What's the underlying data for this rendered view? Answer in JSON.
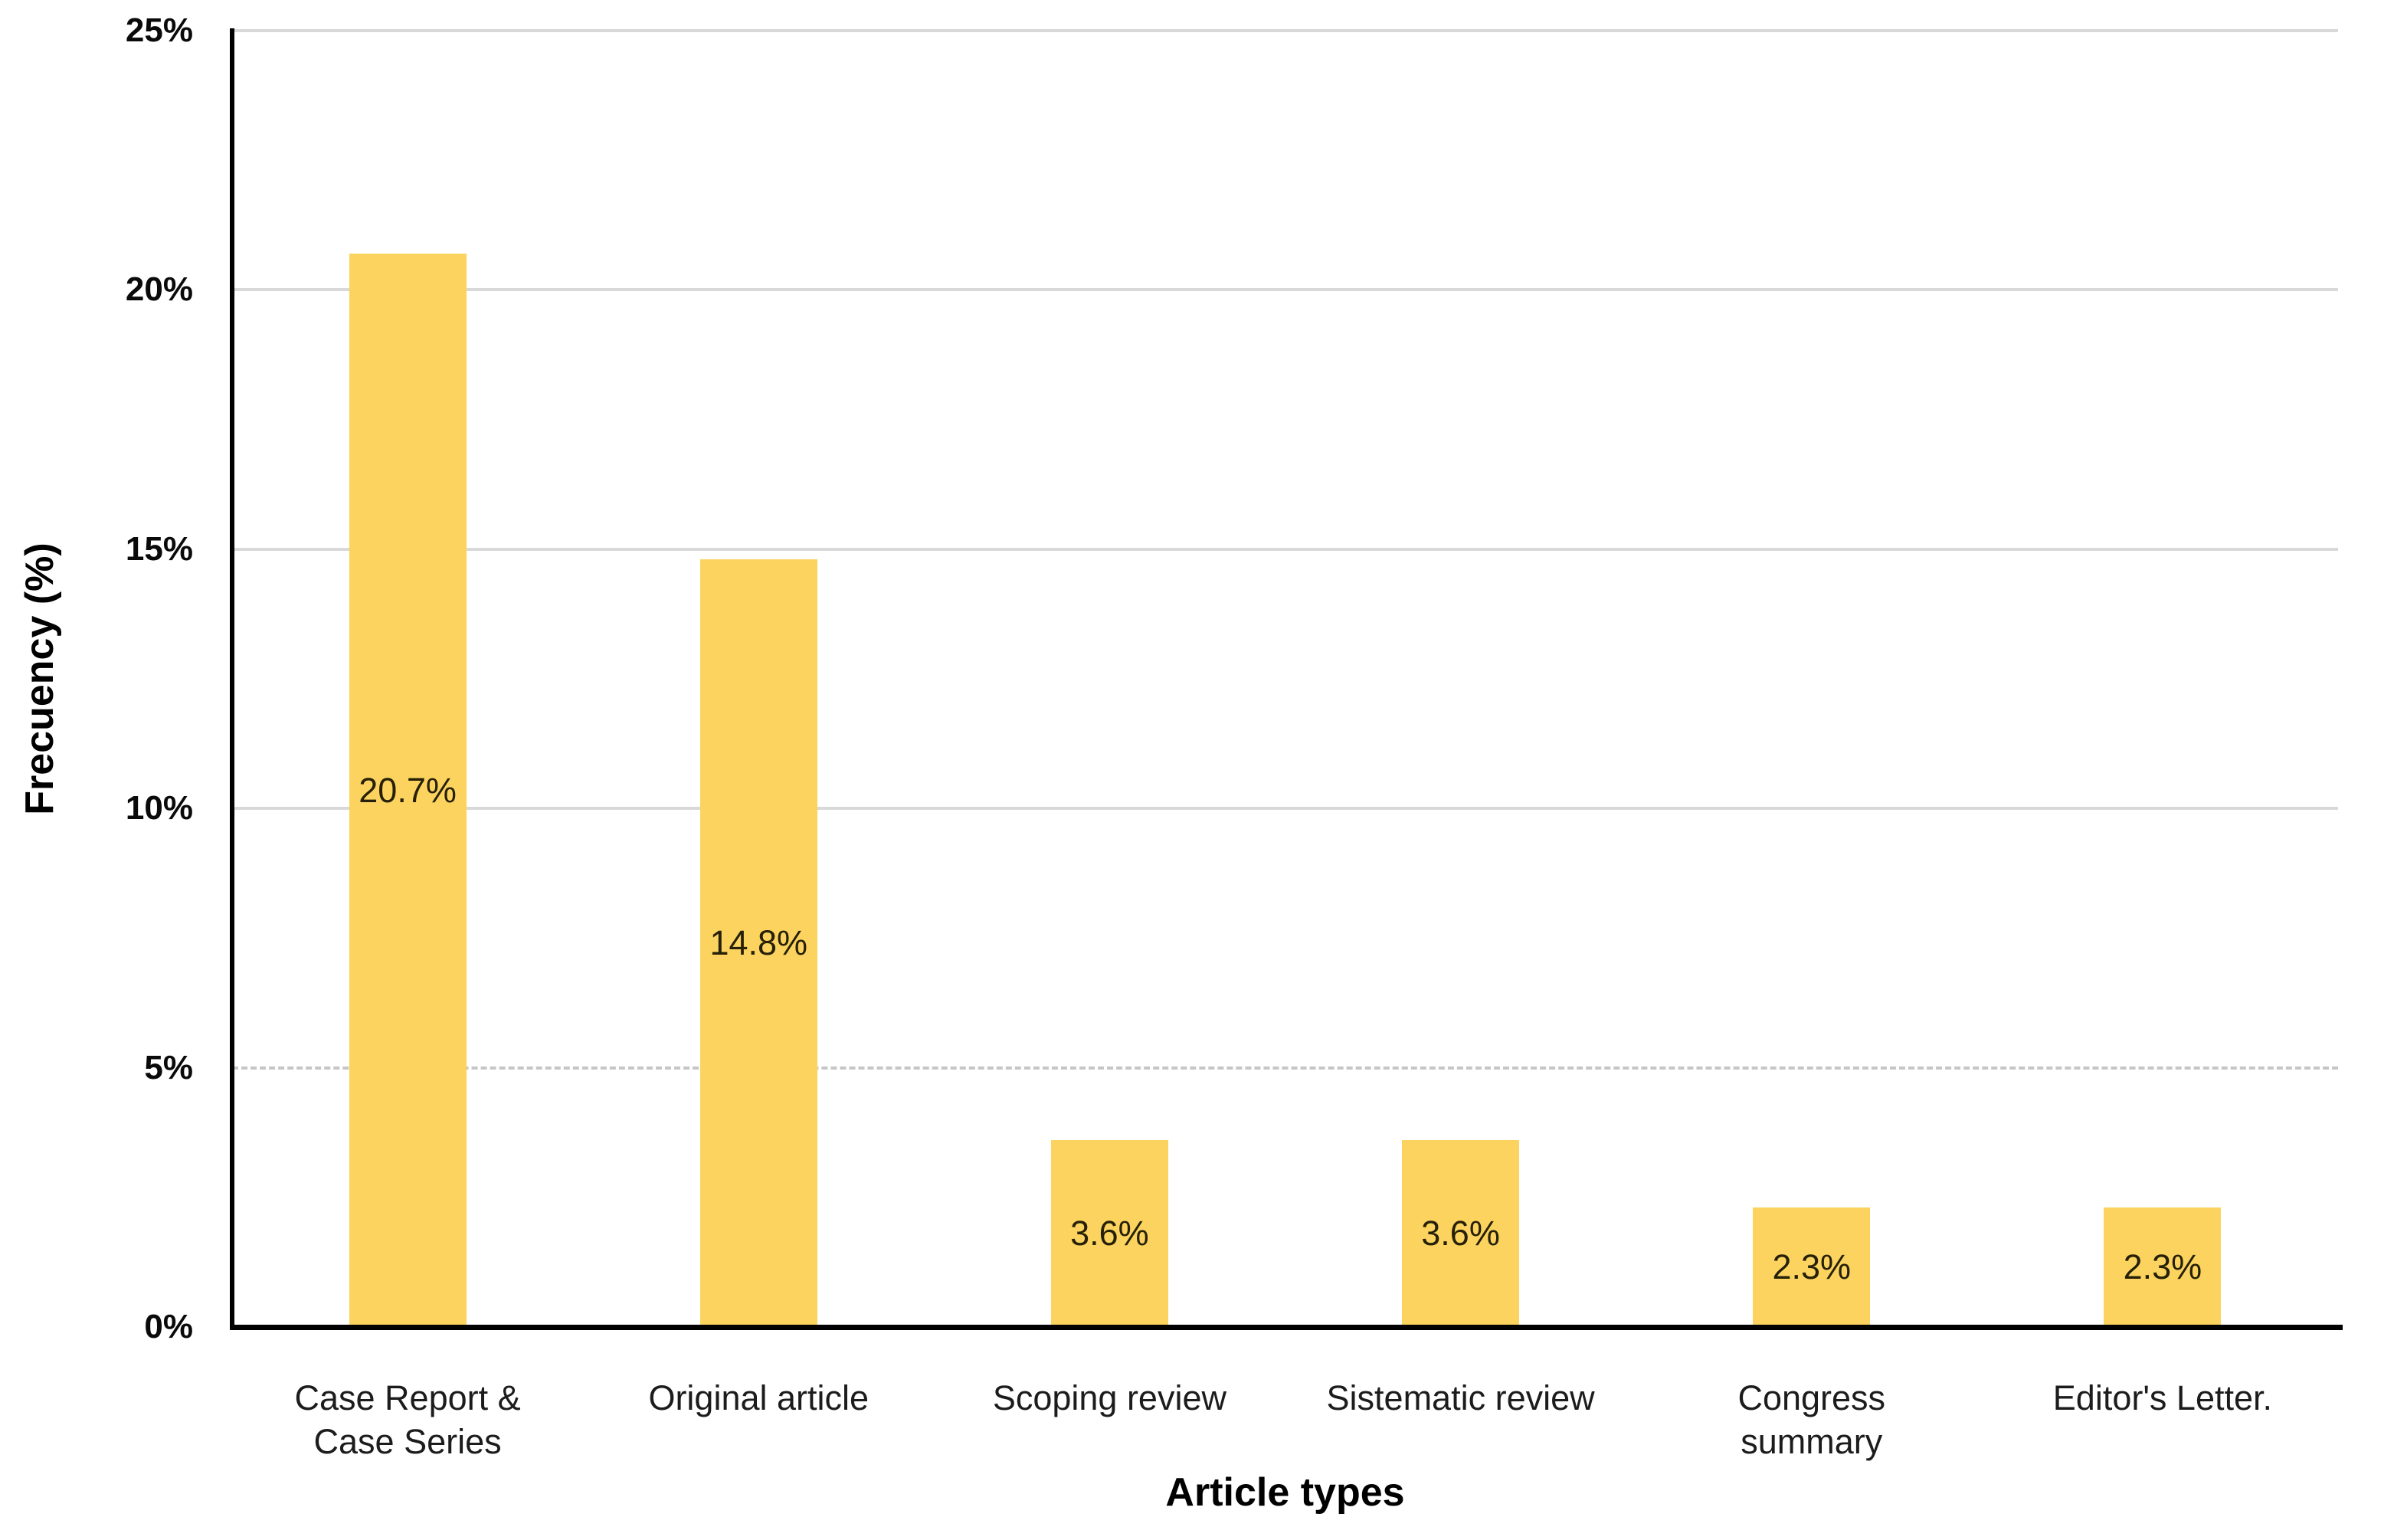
{
  "chart_data": {
    "type": "bar",
    "title": "",
    "xlabel": "Article types",
    "ylabel": "Frecuency (%)",
    "categories": [
      "Case Report &\nCase Series",
      "Original article",
      "Scoping review",
      "Sistematic review",
      "Congress\nsummary",
      "Editor's Letter."
    ],
    "values": [
      20.7,
      14.8,
      3.6,
      3.6,
      2.3,
      2.3
    ],
    "value_labels": [
      "20.7%",
      "14.8%",
      "3.6%",
      "3.6%",
      "2.3%",
      "2.3%"
    ],
    "yticks": {
      "values": [
        25,
        20,
        15,
        10,
        5,
        0
      ],
      "labels": [
        "25%",
        "20%",
        "15%",
        "10%",
        "5%",
        "0%"
      ]
    },
    "ylim": [
      0,
      25
    ],
    "grid": "horizontal",
    "legend": "none"
  },
  "styles": {
    "bar_color": "#FBD35E",
    "grid_color": "#D9D9D9",
    "grid_dashed_color": "#C6C6C6",
    "dashed_gridline_values": [
      5
    ],
    "axis_color": "#000000",
    "tick_text_color": "#0A0A0A",
    "category_text_color": "#1C1C1C",
    "value_label_color": "#262008",
    "background": "#FFFFFF"
  }
}
